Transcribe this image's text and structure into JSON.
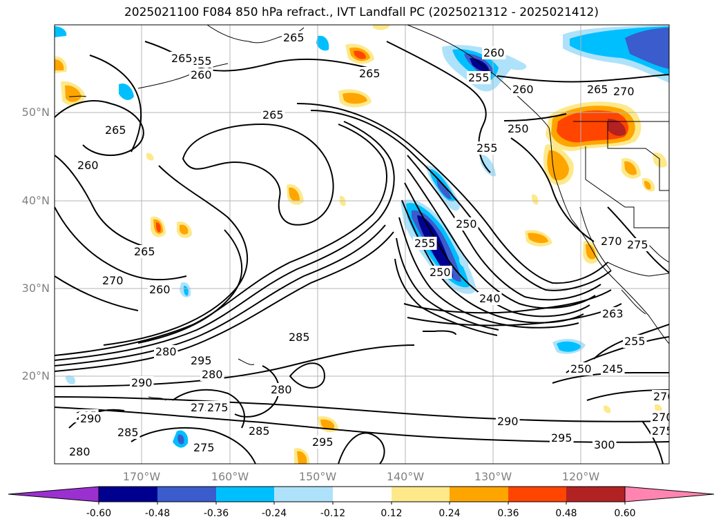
{
  "title": "2025021100 F084 850 hPa refract., IVT Landfall PC (2025021312 - 2025021412)",
  "lat_labels": [
    "50°N",
    "40°N",
    "30°N",
    "20°N"
  ],
  "lon_labels": [
    "170°W",
    "160°W",
    "150°W",
    "140°W",
    "130°W",
    "120°W"
  ],
  "colorbar": {
    "tick_labels": [
      "-0.60",
      "-0.48",
      "-0.36",
      "-0.24",
      "-0.12",
      "0.12",
      "0.24",
      "0.36",
      "0.48",
      "0.60"
    ],
    "colors": [
      "#9b30d0",
      "#000090",
      "#3a5ccc",
      "#00bfff",
      "#aee2fa",
      "#ffffff",
      "#fde98a",
      "#ffa500",
      "#ff4500",
      "#b22222",
      "#ff85b0"
    ]
  },
  "contour_labels": [
    "255",
    "260",
    "265",
    "265",
    "265",
    "260",
    "265",
    "260",
    "265",
    "270",
    "270",
    "260",
    "280",
    "295",
    "290",
    "280",
    "285",
    "280",
    "275",
    "285",
    "290",
    "285",
    "280",
    "275",
    "285",
    "295",
    "290",
    "295",
    "300",
    "275",
    "270",
    "263",
    "255",
    "245",
    "250",
    "275",
    "240",
    "250",
    "255",
    "250",
    "260",
    "265",
    "270",
    "250",
    "255",
    "255",
    "265",
    "275",
    "270"
  ],
  "fill_colors": {
    "blue_light": "#aee2fa",
    "blue": "#00bfff",
    "blue_mid": "#3a5ccc",
    "navy": "#000090",
    "yellow": "#fde98a",
    "orange": "#ffa500",
    "red_orange": "#ff4500",
    "dark_red": "#b22222"
  }
}
